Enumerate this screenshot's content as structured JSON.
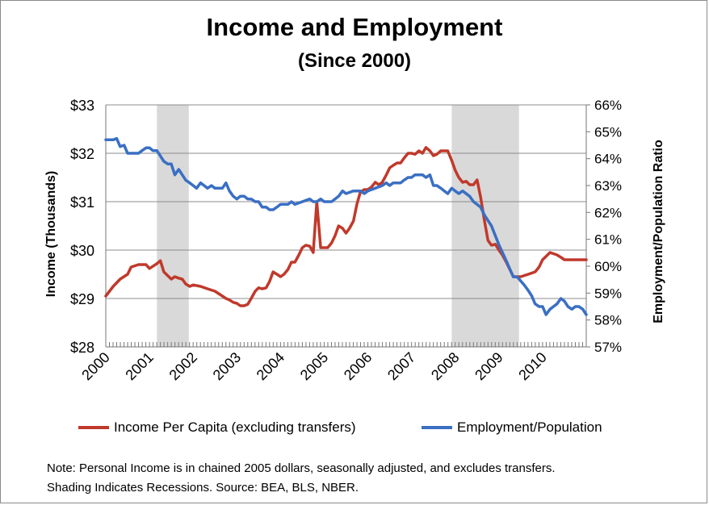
{
  "title": "Income and Employment",
  "subtitle": "(Since 2000)",
  "note_line1": "Note: Personal Income is in chained 2005 dollars, seasonally adjusted, and excludes transfers.",
  "note_line2": "Shading Indicates Recessions. Source:  BEA, BLS, NBER.",
  "colors": {
    "income": "#c0392b",
    "employment": "#3a6fc4",
    "recession": "#d9d9d9",
    "grid": "#8c8c8c"
  },
  "chart_data": {
    "type": "line",
    "x_tick_labels": [
      "2000",
      "2001",
      "2002",
      "2003",
      "2004",
      "2005",
      "2006",
      "2007",
      "2008",
      "2009",
      "2010"
    ],
    "x_range": [
      2000.0,
      2011.0
    ],
    "ylabel": "Income (Thousands)",
    "y2label": "Employment/Population Ratio",
    "ylim": [
      28,
      33
    ],
    "y2lim": [
      57,
      66
    ],
    "y_tick_labels": [
      "$28",
      "$29",
      "$30",
      "$31",
      "$32",
      "$33"
    ],
    "y2_tick_labels": [
      "57%",
      "58%",
      "59%",
      "60%",
      "61%",
      "62%",
      "63%",
      "64%",
      "65%",
      "66%"
    ],
    "grid": true,
    "recessions": [
      [
        2001.17,
        2001.9
      ],
      [
        2007.92,
        2009.46
      ]
    ],
    "series": [
      {
        "name": "Income Per Capita (excluding transfers)",
        "axis": "left",
        "x": [
          2000.0,
          2000.17,
          2000.33,
          2000.5,
          2000.58,
          2000.75,
          2000.92,
          2001.0,
          2001.17,
          2001.25,
          2001.33,
          2001.5,
          2001.58,
          2001.67,
          2001.75,
          2001.83,
          2001.92,
          2002.0,
          2002.17,
          2002.33,
          2002.5,
          2002.67,
          2002.75,
          2002.83,
          2002.92,
          2003.0,
          2003.08,
          2003.17,
          2003.25,
          2003.33,
          2003.42,
          2003.5,
          2003.58,
          2003.67,
          2003.75,
          2003.83,
          2003.92,
          2004.0,
          2004.08,
          2004.17,
          2004.25,
          2004.33,
          2004.42,
          2004.5,
          2004.58,
          2004.67,
          2004.75,
          2004.83,
          2004.92,
          2005.0,
          2005.08,
          2005.17,
          2005.25,
          2005.33,
          2005.42,
          2005.5,
          2005.58,
          2005.67,
          2005.75,
          2005.83,
          2005.92,
          2006.0,
          2006.08,
          2006.17,
          2006.25,
          2006.33,
          2006.42,
          2006.5,
          2006.58,
          2006.67,
          2006.75,
          2006.83,
          2006.92,
          2007.0,
          2007.08,
          2007.17,
          2007.25,
          2007.33,
          2007.42,
          2007.5,
          2007.58,
          2007.67,
          2007.75,
          2007.83,
          2007.92,
          2008.0,
          2008.08,
          2008.17,
          2008.25,
          2008.33,
          2008.42,
          2008.5,
          2008.58,
          2008.67,
          2008.75,
          2008.83,
          2008.92,
          2009.0,
          2009.08,
          2009.17,
          2009.33,
          2009.5,
          2009.67,
          2009.83,
          2009.92,
          2010.0,
          2010.17,
          2010.33,
          2010.42,
          2010.5,
          2010.58,
          2010.75,
          2010.92,
          2011.0
        ],
        "y": [
          29.05,
          29.25,
          29.4,
          29.5,
          29.65,
          29.7,
          29.7,
          29.62,
          29.72,
          29.78,
          29.55,
          29.4,
          29.45,
          29.42,
          29.4,
          29.3,
          29.25,
          29.28,
          29.25,
          29.2,
          29.15,
          29.05,
          29.0,
          28.97,
          28.92,
          28.9,
          28.85,
          28.85,
          28.88,
          29.0,
          29.15,
          29.22,
          29.2,
          29.22,
          29.35,
          29.55,
          29.5,
          29.45,
          29.5,
          29.6,
          29.75,
          29.75,
          29.9,
          30.05,
          30.1,
          30.08,
          29.95,
          31.0,
          30.05,
          30.05,
          30.05,
          30.15,
          30.3,
          30.5,
          30.45,
          30.35,
          30.45,
          30.6,
          30.95,
          31.2,
          31.25,
          31.25,
          31.3,
          31.4,
          31.35,
          31.4,
          31.55,
          31.7,
          31.75,
          31.8,
          31.8,
          31.9,
          32.0,
          32.0,
          31.98,
          32.05,
          32.0,
          32.12,
          32.05,
          31.95,
          31.98,
          32.05,
          32.05,
          32.05,
          31.85,
          31.65,
          31.5,
          31.4,
          31.42,
          31.35,
          31.35,
          31.45,
          31.1,
          30.6,
          30.2,
          30.1,
          30.12,
          30.0,
          29.9,
          29.75,
          29.45,
          29.45,
          29.5,
          29.55,
          29.65,
          29.8,
          29.95,
          29.9,
          29.85,
          29.8,
          29.8,
          29.8,
          29.8,
          29.8
        ],
        "x_days_note": ""
      },
      {
        "name": "Employment/Population",
        "axis": "right",
        "x": [
          2000.0,
          2000.17,
          2000.25,
          2000.33,
          2000.42,
          2000.5,
          2000.58,
          2000.75,
          2000.83,
          2000.92,
          2001.0,
          2001.08,
          2001.17,
          2001.33,
          2001.42,
          2001.5,
          2001.58,
          2001.67,
          2001.75,
          2001.83,
          2001.92,
          2002.0,
          2002.08,
          2002.17,
          2002.25,
          2002.33,
          2002.42,
          2002.5,
          2002.58,
          2002.67,
          2002.75,
          2002.83,
          2002.92,
          2003.0,
          2003.08,
          2003.17,
          2003.25,
          2003.33,
          2003.42,
          2003.5,
          2003.58,
          2003.67,
          2003.75,
          2003.83,
          2003.92,
          2004.0,
          2004.17,
          2004.25,
          2004.33,
          2004.5,
          2004.67,
          2004.75,
          2004.83,
          2004.92,
          2005.0,
          2005.08,
          2005.17,
          2005.33,
          2005.42,
          2005.5,
          2005.67,
          2005.83,
          2005.92,
          2006.0,
          2006.17,
          2006.33,
          2006.42,
          2006.5,
          2006.58,
          2006.67,
          2006.75,
          2006.83,
          2006.92,
          2007.0,
          2007.08,
          2007.17,
          2007.25,
          2007.33,
          2007.42,
          2007.5,
          2007.58,
          2007.67,
          2007.75,
          2007.83,
          2007.92,
          2008.0,
          2008.08,
          2008.17,
          2008.33,
          2008.42,
          2008.58,
          2008.67,
          2008.83,
          2009.0,
          2009.17,
          2009.33,
          2009.42,
          2009.58,
          2009.67,
          2009.75,
          2009.83,
          2009.92,
          2010.0,
          2010.08,
          2010.17,
          2010.25,
          2010.33,
          2010.42,
          2010.5,
          2010.58,
          2010.67,
          2010.75,
          2010.83,
          2010.92,
          2011.0
        ],
        "y": [
          64.7,
          64.7,
          64.75,
          64.45,
          64.5,
          64.2,
          64.2,
          64.2,
          64.3,
          64.4,
          64.4,
          64.3,
          64.3,
          63.9,
          63.8,
          63.8,
          63.4,
          63.6,
          63.4,
          63.2,
          63.1,
          63.0,
          62.9,
          63.1,
          63.0,
          62.9,
          63.0,
          62.9,
          62.9,
          62.9,
          63.1,
          62.8,
          62.6,
          62.5,
          62.6,
          62.6,
          62.5,
          62.5,
          62.4,
          62.4,
          62.2,
          62.2,
          62.1,
          62.1,
          62.2,
          62.3,
          62.3,
          62.4,
          62.3,
          62.4,
          62.5,
          62.4,
          62.4,
          62.5,
          62.4,
          62.4,
          62.4,
          62.6,
          62.8,
          62.7,
          62.8,
          62.8,
          62.7,
          62.8,
          62.9,
          63.0,
          63.1,
          63.0,
          63.1,
          63.1,
          63.1,
          63.2,
          63.3,
          63.3,
          63.4,
          63.4,
          63.4,
          63.3,
          63.4,
          63.0,
          63.0,
          62.9,
          62.8,
          62.7,
          62.9,
          62.8,
          62.7,
          62.8,
          62.6,
          62.4,
          62.2,
          61.9,
          61.5,
          60.8,
          60.2,
          59.6,
          59.6,
          59.3,
          59.1,
          58.9,
          58.6,
          58.5,
          58.5,
          58.2,
          58.4,
          58.5,
          58.6,
          58.8,
          58.7,
          58.5,
          58.4,
          58.5,
          58.5,
          58.4,
          58.2
        ]
      }
    ]
  }
}
